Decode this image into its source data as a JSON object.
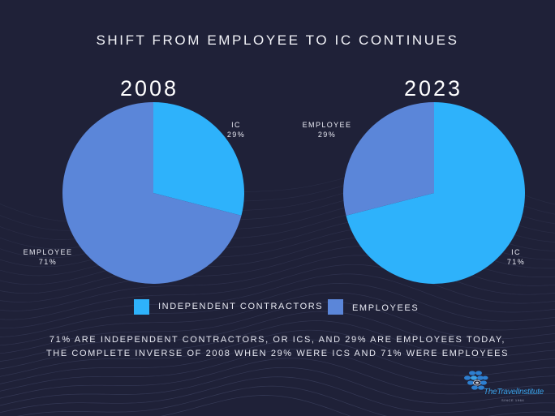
{
  "title": "SHIFT FROM EMPLOYEE TO IC CONTINUES",
  "colors": {
    "background": "#1f2138",
    "independent_contractors": "#2eb2fb",
    "employees": "#5b86d9"
  },
  "chart_data": [
    {
      "type": "pie",
      "title": "2008",
      "slices": [
        {
          "label": "IC",
          "value": 29,
          "display": "29%"
        },
        {
          "label": "EMPLOYEE",
          "value": 71,
          "display": "71%"
        }
      ]
    },
    {
      "type": "pie",
      "title": "2023",
      "slices": [
        {
          "label": "IC",
          "value": 71,
          "display": "71%"
        },
        {
          "label": "EMPLOYEE",
          "value": 29,
          "display": "29%"
        }
      ]
    }
  ],
  "legend": [
    {
      "label": "INDEPENDENT CONTRACTORS",
      "color": "#2eb2fb"
    },
    {
      "label": "EMPLOYEES",
      "color": "#5b86d9"
    }
  ],
  "caption": [
    "71% ARE INDEPENDENT CONTRACTORS, OR ICS, AND 29% ARE EMPLOYEES TODAY,",
    "THE COMPLETE INVERSE OF 2008 WHEN 29% WERE ICS AND 71% WERE EMPLOYEES"
  ],
  "logo": {
    "name": "TheTravelInstitute",
    "tagline": "SINCE 1964"
  }
}
